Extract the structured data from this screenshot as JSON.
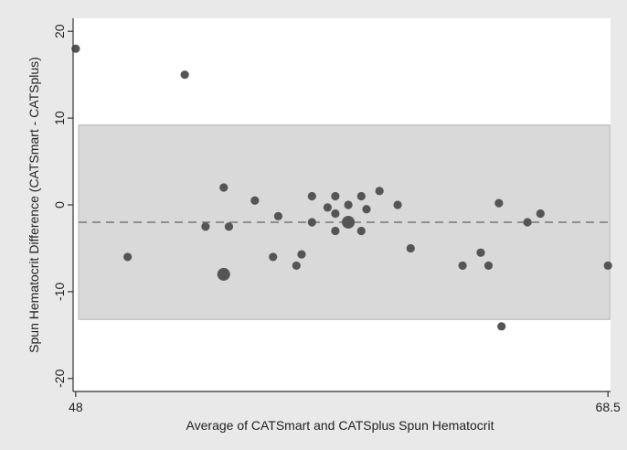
{
  "chart_data": {
    "type": "scatter",
    "title": "",
    "xlabel": "Average of CATSmart and CATSplus Spun Hematocrit",
    "ylabel": "Spun Hematocrit Difference (CATSmart - CATSplus)",
    "xlim": [
      47.9,
      68.6
    ],
    "ylim": [
      -21.5,
      21.5
    ],
    "xticks": [
      48,
      68.5
    ],
    "xtick_labels": [
      "48",
      "68.5"
    ],
    "yticks": [
      -20,
      -10,
      0,
      10,
      20
    ],
    "ytick_labels": [
      "-20",
      "-10",
      "0",
      "10",
      "20"
    ],
    "mean_difference": -2,
    "limits_of_agreement": [
      -13.2,
      9.2
    ],
    "grid": false,
    "legend": "none",
    "colors": {
      "background": "#e9e9e9",
      "plot_area": "#ffffff",
      "band": "#d9d9d9",
      "band_edge": "#b5b5b5",
      "point": "#555555",
      "mean_line": "#777777",
      "axis": "#333333"
    },
    "points": [
      {
        "x": 48.0,
        "y": 18.0,
        "size": 1
      },
      {
        "x": 52.2,
        "y": 15.0,
        "size": 1
      },
      {
        "x": 50.0,
        "y": -6.0,
        "size": 1
      },
      {
        "x": 53.0,
        "y": -2.5,
        "size": 1
      },
      {
        "x": 53.7,
        "y": 2.0,
        "size": 1
      },
      {
        "x": 53.9,
        "y": -2.5,
        "size": 1
      },
      {
        "x": 53.7,
        "y": -8.0,
        "size": 2
      },
      {
        "x": 54.9,
        "y": 0.5,
        "size": 1
      },
      {
        "x": 55.6,
        "y": -6.0,
        "size": 1
      },
      {
        "x": 55.8,
        "y": -1.3,
        "size": 1
      },
      {
        "x": 56.5,
        "y": -7.0,
        "size": 1
      },
      {
        "x": 56.7,
        "y": -5.7,
        "size": 1
      },
      {
        "x": 57.1,
        "y": 1.0,
        "size": 1
      },
      {
        "x": 57.1,
        "y": -2.0,
        "size": 1
      },
      {
        "x": 57.7,
        "y": -0.3,
        "size": 1
      },
      {
        "x": 58.0,
        "y": 1.0,
        "size": 1
      },
      {
        "x": 58.0,
        "y": -1.0,
        "size": 1
      },
      {
        "x": 58.0,
        "y": -3.0,
        "size": 1
      },
      {
        "x": 58.5,
        "y": 0.0,
        "size": 1
      },
      {
        "x": 58.5,
        "y": -2.0,
        "size": 2
      },
      {
        "x": 59.0,
        "y": 1.0,
        "size": 1
      },
      {
        "x": 59.0,
        "y": -3.0,
        "size": 1
      },
      {
        "x": 59.2,
        "y": -0.5,
        "size": 1
      },
      {
        "x": 59.7,
        "y": 1.6,
        "size": 1
      },
      {
        "x": 60.4,
        "y": 0.0,
        "size": 1
      },
      {
        "x": 60.9,
        "y": -5.0,
        "size": 1
      },
      {
        "x": 62.9,
        "y": -7.0,
        "size": 1
      },
      {
        "x": 63.6,
        "y": -5.5,
        "size": 1
      },
      {
        "x": 63.9,
        "y": -7.0,
        "size": 1
      },
      {
        "x": 64.3,
        "y": 0.2,
        "size": 1
      },
      {
        "x": 64.4,
        "y": -14.0,
        "size": 1
      },
      {
        "x": 65.4,
        "y": -2.0,
        "size": 1
      },
      {
        "x": 65.9,
        "y": -1.0,
        "size": 1
      },
      {
        "x": 68.5,
        "y": -7.0,
        "size": 1
      }
    ]
  }
}
